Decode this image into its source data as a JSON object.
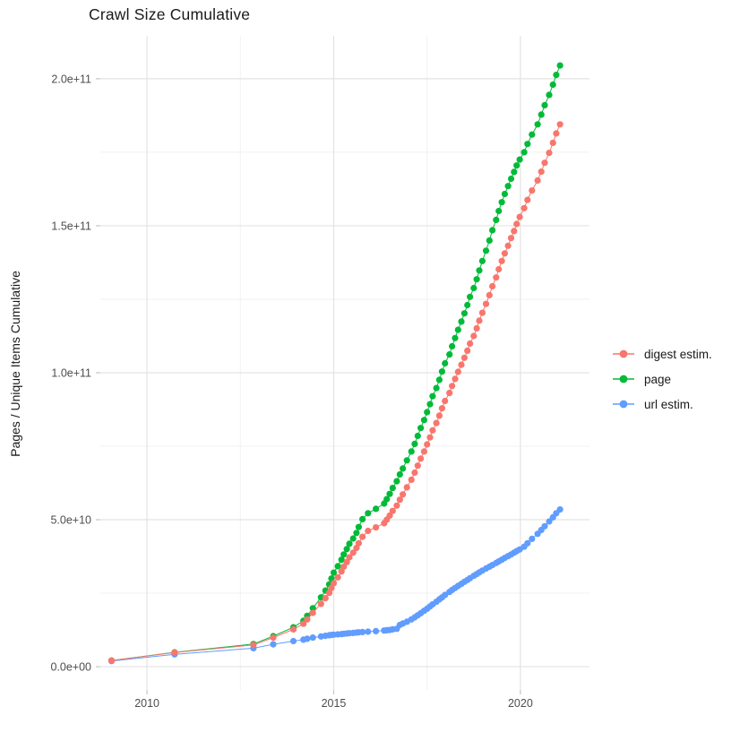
{
  "chart_data": {
    "type": "scatter-line",
    "title": "Crawl Size Cumulative",
    "ylabel": "Pages / Unique Items Cumulative",
    "xlabel": "",
    "units_note": "y values stored in billions (1e9); axis shows scientific notation",
    "legend_position": "right",
    "grid": "on",
    "xlim": [
      2008.75,
      2021.85
    ],
    "ylim_e9": [
      -7.9,
      214.6
    ],
    "x_axis": {
      "major": [
        {
          "v": 2010,
          "label": "2010"
        },
        {
          "v": 2015,
          "label": "2015"
        },
        {
          "v": 2020,
          "label": "2020"
        }
      ],
      "minor": [
        2012.5,
        2017.5
      ]
    },
    "y_axis": {
      "major": [
        {
          "v": 0,
          "label": "0.0e+00"
        },
        {
          "v": 50,
          "label": "5.0e+10"
        },
        {
          "v": 100,
          "label": "1.0e+11"
        },
        {
          "v": 150,
          "label": "1.5e+11"
        },
        {
          "v": 200,
          "label": "2.0e+11"
        }
      ],
      "minor": [
        25,
        75,
        125,
        175
      ]
    },
    "x": [
      2009.05,
      2010.74,
      2012.85,
      2013.38,
      2013.92,
      2014.19,
      2014.29,
      2014.44,
      2014.66,
      2014.78,
      2014.88,
      2014.94,
      2015.0,
      2015.11,
      2015.21,
      2015.27,
      2015.35,
      2015.42,
      2015.52,
      2015.61,
      2015.67,
      2015.77,
      2015.92,
      2016.13,
      2016.35,
      2016.42,
      2016.5,
      2016.58,
      2016.69,
      2016.77,
      2016.85,
      2016.96,
      2017.08,
      2017.17,
      2017.25,
      2017.33,
      2017.42,
      2017.5,
      2017.58,
      2017.65,
      2017.75,
      2017.83,
      2017.9,
      2017.98,
      2018.1,
      2018.17,
      2018.25,
      2018.33,
      2018.42,
      2018.5,
      2018.58,
      2018.65,
      2018.75,
      2018.83,
      2018.9,
      2018.98,
      2019.08,
      2019.17,
      2019.25,
      2019.35,
      2019.42,
      2019.5,
      2019.58,
      2019.67,
      2019.75,
      2019.83,
      2019.9,
      2019.98,
      2020.1,
      2020.19,
      2020.31,
      2020.46,
      2020.56,
      2020.65,
      2020.77,
      2020.87,
      2020.96,
      2021.06
    ],
    "series": [
      {
        "name": "digest estim.",
        "color": "#F8766D",
        "values_e9": [
          2.1,
          4.8,
          7.4,
          9.9,
          12.7,
          14.6,
          16.1,
          18.3,
          21.4,
          23.3,
          25.1,
          26.8,
          28.4,
          30.4,
          32.4,
          34.0,
          35.6,
          37.2,
          38.8,
          40.4,
          42.0,
          44.2,
          46.2,
          47.4,
          48.8,
          50.0,
          51.4,
          53.0,
          54.8,
          56.8,
          58.6,
          61.0,
          63.6,
          66.0,
          68.4,
          70.8,
          73.2,
          75.6,
          78.0,
          80.4,
          82.9,
          85.4,
          87.9,
          90.4,
          93.1,
          95.5,
          97.9,
          100.3,
          102.7,
          105.1,
          107.5,
          109.9,
          112.5,
          115.1,
          117.7,
          120.4,
          123.4,
          126.4,
          129.4,
          132.4,
          135.2,
          138.0,
          140.6,
          143.2,
          145.8,
          148.2,
          150.6,
          153.0,
          156.0,
          158.8,
          162.0,
          165.4,
          168.4,
          171.4,
          174.8,
          178.2,
          181.4,
          184.5
        ]
      },
      {
        "name": "page",
        "color": "#00BA38",
        "values_e9": [
          2.1,
          4.9,
          7.7,
          10.4,
          13.4,
          15.6,
          17.3,
          19.9,
          23.6,
          25.9,
          28.0,
          30.0,
          32.0,
          34.2,
          36.4,
          38.2,
          40.0,
          41.8,
          43.6,
          45.5,
          47.5,
          50.2,
          52.2,
          53.7,
          55.5,
          57.0,
          58.8,
          60.8,
          63.1,
          65.4,
          67.4,
          70.2,
          73.2,
          75.8,
          78.5,
          81.2,
          83.9,
          86.6,
          89.3,
          92.0,
          94.8,
          97.6,
          100.4,
          103.2,
          106.2,
          109.0,
          111.8,
          114.6,
          117.4,
          120.2,
          123.0,
          125.8,
          128.8,
          131.8,
          134.8,
          138.0,
          141.5,
          145.0,
          148.5,
          152.0,
          155.0,
          158.0,
          160.8,
          163.5,
          166.0,
          168.3,
          170.5,
          172.5,
          175.0,
          177.8,
          181.0,
          184.5,
          187.8,
          191.0,
          194.5,
          198.0,
          201.3,
          204.5
        ]
      },
      {
        "name": "url estim.",
        "color": "#619CFF",
        "values_e9": [
          1.9,
          4.2,
          6.3,
          7.6,
          8.7,
          9.2,
          9.5,
          9.9,
          10.3,
          10.5,
          10.7,
          10.8,
          10.9,
          11.0,
          11.1,
          11.2,
          11.3,
          11.4,
          11.5,
          11.6,
          11.7,
          11.8,
          11.9,
          12.1,
          12.3,
          12.4,
          12.5,
          12.7,
          12.9,
          14.2,
          14.7,
          15.3,
          16.1,
          16.8,
          17.5,
          18.2,
          19.0,
          19.7,
          20.5,
          21.2,
          22.1,
          22.9,
          23.6,
          24.4,
          25.4,
          26.1,
          26.8,
          27.5,
          28.2,
          28.9,
          29.5,
          30.1,
          30.9,
          31.5,
          32.1,
          32.7,
          33.4,
          34.0,
          34.6,
          35.3,
          35.8,
          36.4,
          37.0,
          37.6,
          38.2,
          38.8,
          39.3,
          39.9,
          40.8,
          42.0,
          43.5,
          45.2,
          46.5,
          47.8,
          49.4,
          50.8,
          52.2,
          53.5
        ]
      }
    ],
    "style": {
      "grid_major_color": "#E3E3E3",
      "grid_minor_color": "#F1F1F1",
      "tick_color": "#C6C6C6",
      "tick_label_color": "#4D4D4D",
      "point_radius": 3.6,
      "line_width": 1
    }
  }
}
